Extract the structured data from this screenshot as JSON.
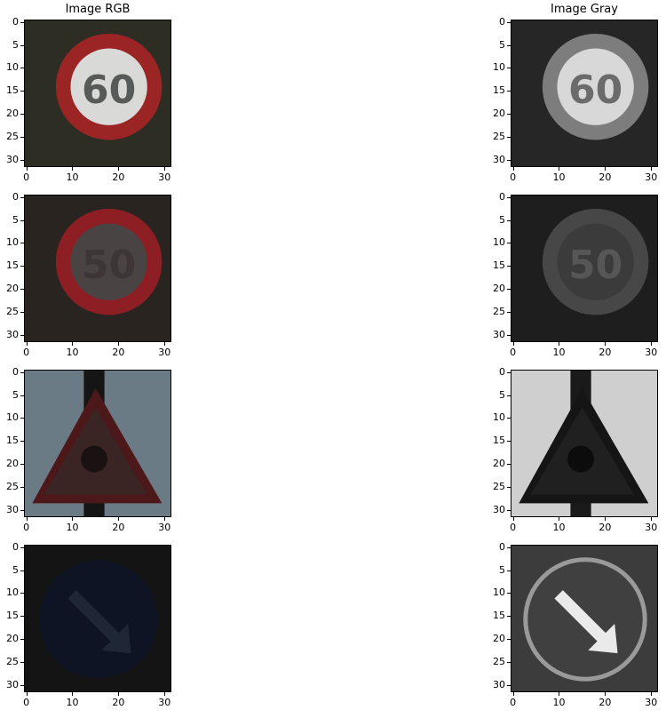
{
  "chart_data": {
    "type": "image-grid",
    "titles": [
      "Image RGB",
      "Image Gray"
    ],
    "x_ticks": [
      0,
      10,
      20,
      30
    ],
    "y_ticks": [
      0,
      5,
      10,
      15,
      20,
      25,
      30
    ],
    "image_size": 32,
    "rows": [
      {
        "kind": "speed-limit",
        "text": "60",
        "background": "#2e2d24",
        "rgb_ring": "#9b2424",
        "rgb_inner": "#d9dad7",
        "rgb_text": "#585a5a",
        "gray_background": "#262626",
        "gray_ring": "#7d7d7d",
        "gray_inner": "#d8d8d8",
        "gray_text": "#6b6b6b"
      },
      {
        "kind": "speed-limit",
        "text": "50",
        "background": "#2a2420",
        "rgb_ring": "#8d1f24",
        "rgb_inner": "#4a4344",
        "rgb_text": "#3e3636",
        "gray_background": "#1e1e1e",
        "gray_ring": "#474747",
        "gray_inner": "#3b3b3b",
        "gray_text": "#565656"
      },
      {
        "kind": "warning-triangle",
        "background": "#6b7b86",
        "rgb_sign": "#3a2524",
        "rgb_border": "#4d1819",
        "gray_background": "#cfcfcf",
        "gray_sign": "#202020",
        "gray_border": "#151515"
      },
      {
        "kind": "mandatory-arrow",
        "background": "#141414",
        "rgb_disk": "#0e1424",
        "rgb_arrow": "#1f2636",
        "gray_background": "#3c3c3c",
        "gray_disk": "#404040",
        "gray_ring": "#9a9a9a",
        "gray_arrow": "#eaeaea"
      }
    ]
  }
}
